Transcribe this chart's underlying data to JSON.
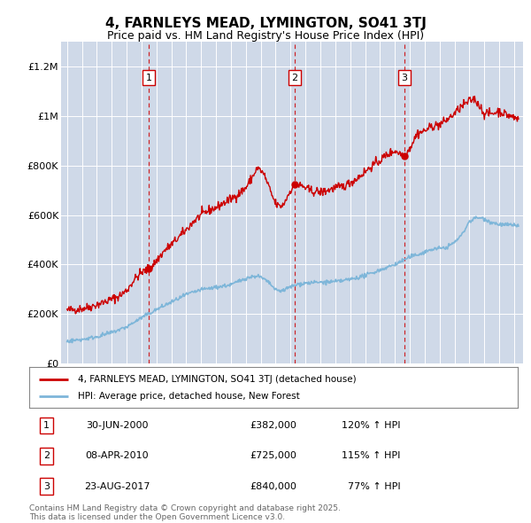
{
  "title": "4, FARNLEYS MEAD, LYMINGTON, SO41 3TJ",
  "subtitle": "Price paid vs. HM Land Registry's House Price Index (HPI)",
  "ylim": [
    0,
    1300000
  ],
  "yticks": [
    0,
    200000,
    400000,
    600000,
    800000,
    1000000,
    1200000
  ],
  "ytick_labels": [
    "£0",
    "£200K",
    "£400K",
    "£600K",
    "£800K",
    "£1M",
    "£1.2M"
  ],
  "xlim_start": 1994.6,
  "xlim_end": 2025.6,
  "bg_color": "#cfd9e8",
  "red_color": "#cc0000",
  "blue_color": "#7eb6d9",
  "sale_dates": [
    2000.496,
    2010.271,
    2017.644
  ],
  "sale_prices": [
    382000,
    725000,
    840000
  ],
  "sale_labels": [
    "1",
    "2",
    "3"
  ],
  "legend_label_red": "4, FARNLEYS MEAD, LYMINGTON, SO41 3TJ (detached house)",
  "legend_label_blue": "HPI: Average price, detached house, New Forest",
  "table_rows": [
    {
      "num": "1",
      "date": "30-JUN-2000",
      "price": "£382,000",
      "hpi": "120% ↑ HPI"
    },
    {
      "num": "2",
      "date": "08-APR-2010",
      "price": "£725,000",
      "hpi": "115% ↑ HPI"
    },
    {
      "num": "3",
      "date": "23-AUG-2017",
      "price": "£840,000",
      "hpi": "77% ↑ HPI"
    }
  ],
  "footer": "Contains HM Land Registry data © Crown copyright and database right 2025.\nThis data is licensed under the Open Government Licence v3.0.",
  "red_ctrl_y": [
    1995.0,
    1995.5,
    1996.0,
    1996.5,
    1997.0,
    1997.5,
    1998.0,
    1998.5,
    1999.0,
    1999.5,
    2000.0,
    2000.496,
    2000.8,
    2001.2,
    2001.6,
    2002.0,
    2002.5,
    2003.0,
    2003.5,
    2004.0,
    2004.5,
    2005.0,
    2005.5,
    2006.0,
    2006.5,
    2007.0,
    2007.5,
    2007.75,
    2008.0,
    2008.25,
    2008.5,
    2008.75,
    2009.0,
    2009.25,
    2009.5,
    2009.75,
    2010.0,
    2010.271,
    2010.5,
    2010.75,
    2011.0,
    2011.25,
    2011.5,
    2011.75,
    2012.0,
    2012.5,
    2013.0,
    2013.5,
    2014.0,
    2014.5,
    2015.0,
    2015.5,
    2016.0,
    2016.5,
    2017.0,
    2017.644,
    2018.0,
    2018.25,
    2018.5,
    2019.0,
    2019.5,
    2020.0,
    2020.5,
    2021.0,
    2021.5,
    2022.0,
    2022.3,
    2022.6,
    2023.0,
    2023.5,
    2024.0,
    2024.5,
    2025.2
  ],
  "red_ctrl_v": [
    215000,
    218000,
    222000,
    228000,
    238000,
    248000,
    260000,
    272000,
    295000,
    338000,
    368000,
    382000,
    400000,
    430000,
    460000,
    480000,
    510000,
    540000,
    575000,
    600000,
    618000,
    630000,
    648000,
    665000,
    685000,
    710000,
    760000,
    790000,
    780000,
    760000,
    720000,
    680000,
    645000,
    635000,
    640000,
    670000,
    700000,
    725000,
    720000,
    718000,
    710000,
    700000,
    695000,
    695000,
    692000,
    700000,
    710000,
    715000,
    730000,
    750000,
    775000,
    800000,
    820000,
    845000,
    860000,
    840000,
    870000,
    900000,
    930000,
    940000,
    960000,
    965000,
    985000,
    1010000,
    1040000,
    1060000,
    1070000,
    1050000,
    1010000,
    1010000,
    1020000,
    1005000,
    990000
  ],
  "blue_ctrl_y": [
    1995.0,
    1996.0,
    1997.0,
    1998.0,
    1999.0,
    2000.0,
    2001.0,
    2002.0,
    2003.0,
    2004.0,
    2005.0,
    2006.0,
    2007.0,
    2007.75,
    2008.25,
    2008.75,
    2009.0,
    2009.5,
    2010.0,
    2010.5,
    2011.0,
    2012.0,
    2013.0,
    2014.0,
    2015.0,
    2016.0,
    2017.0,
    2018.0,
    2019.0,
    2019.5,
    2020.0,
    2020.5,
    2021.0,
    2021.5,
    2022.0,
    2022.5,
    2023.0,
    2023.5,
    2024.0,
    2024.5,
    2025.2
  ],
  "blue_ctrl_v": [
    90000,
    97000,
    108000,
    125000,
    148000,
    185000,
    218000,
    248000,
    278000,
    298000,
    308000,
    318000,
    345000,
    355000,
    340000,
    315000,
    295000,
    295000,
    310000,
    320000,
    325000,
    328000,
    330000,
    340000,
    355000,
    378000,
    400000,
    430000,
    450000,
    462000,
    465000,
    470000,
    490000,
    520000,
    575000,
    590000,
    585000,
    570000,
    562000,
    560000,
    558000
  ]
}
